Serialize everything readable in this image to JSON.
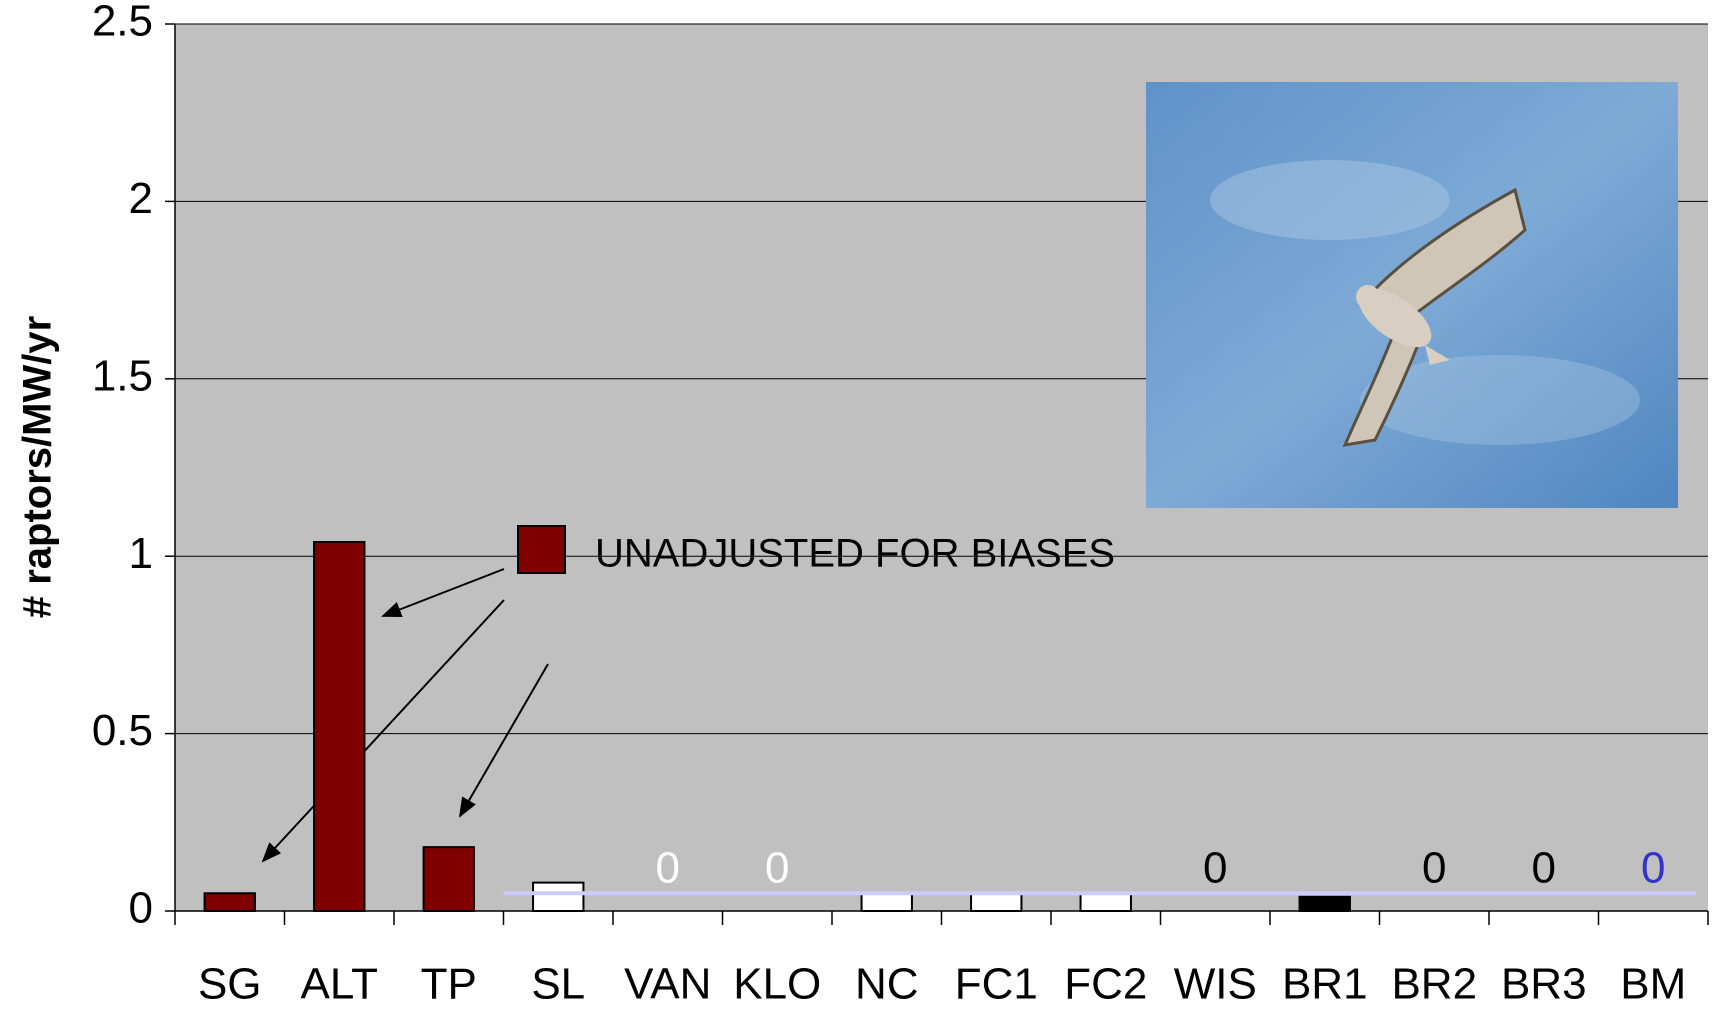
{
  "chart_data": {
    "type": "bar",
    "y_label": "# raptors/MW/yr",
    "categories": [
      "SG",
      "ALT",
      "TP",
      "SL",
      "VAN",
      "KLO",
      "NC",
      "FC1",
      "FC2",
      "WIS",
      "BR1",
      "BR2",
      "BR3",
      "BM"
    ],
    "series": [
      {
        "name": "UNADJUSTED FOR BIASES",
        "color": "#800000",
        "values": [
          0.05,
          1.04,
          0.18,
          0.08,
          0,
          0,
          0.05,
          0.05,
          0.05,
          0,
          0.04,
          0,
          0,
          0
        ]
      }
    ],
    "bar_colors": [
      "#800000",
      "#800000",
      "#800000",
      "#ffffff",
      "#ffffff",
      "#ffffff",
      "#ffffff",
      "#ffffff",
      "#ffffff",
      "#ffffff",
      "#000000",
      "#ffffff",
      "#ffffff",
      "#ffffff"
    ],
    "label_colors": [
      null,
      null,
      null,
      null,
      "#ffffff",
      "#ffffff",
      null,
      null,
      null,
      "#000000",
      null,
      "#000000",
      "#000000",
      "#3333cc"
    ],
    "reference_line": {
      "value": 0.05,
      "color": "#ccccff",
      "start_index": 3
    },
    "ylim": [
      0,
      2.5
    ],
    "yticks": [
      0,
      0.5,
      1,
      1.5,
      2,
      2.5
    ],
    "grid": true,
    "plot_background": "#c0c0c0"
  }
}
